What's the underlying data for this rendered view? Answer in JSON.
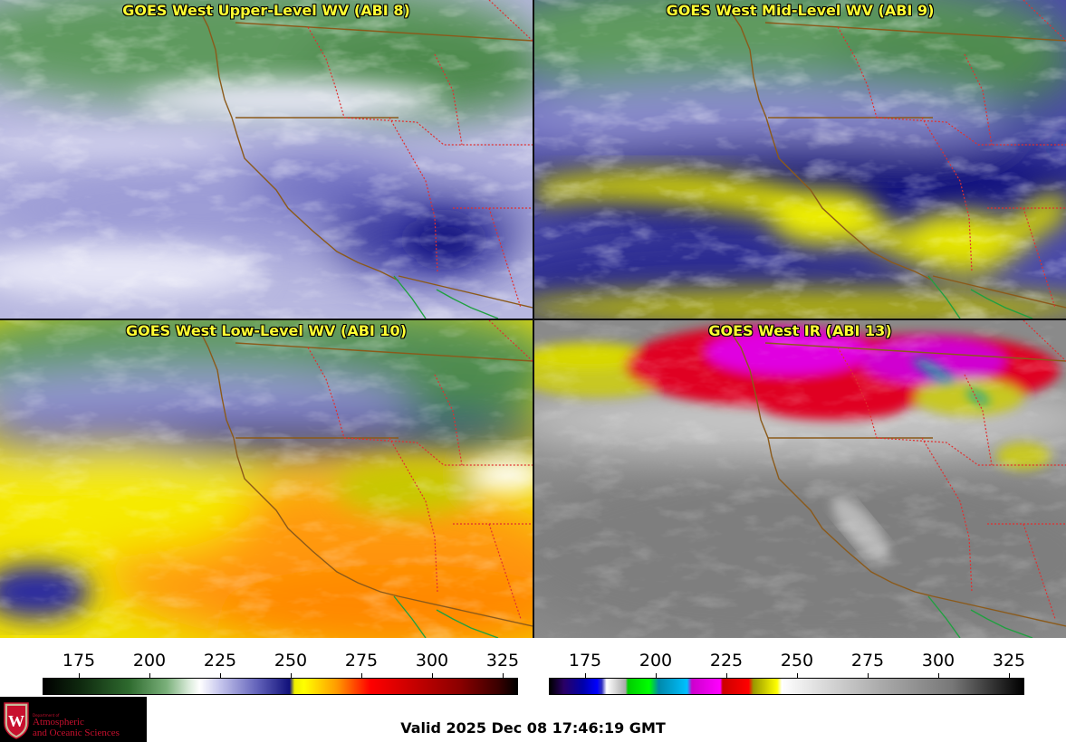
{
  "panels": [
    {
      "id": "upper",
      "title": "GOES West Upper-Level WV (ABI 8)"
    },
    {
      "id": "mid",
      "title": "GOES West Mid-Level WV (ABI 9)"
    },
    {
      "id": "low",
      "title": "GOES West Low-Level WV (ABI 10)"
    },
    {
      "id": "ir",
      "title": "GOES West IR (ABI 13)"
    }
  ],
  "colorbars": {
    "wv": {
      "ticks": [
        "175",
        "200",
        "225",
        "250",
        "275",
        "300",
        "325"
      ]
    },
    "ir": {
      "ticks": [
        "175",
        "200",
        "225",
        "250",
        "275",
        "300",
        "325"
      ]
    }
  },
  "logo": {
    "dept": "Department of",
    "line1": "Atmospheric",
    "line2": "and Oceanic Sciences"
  },
  "valid_time": "Valid 2025 Dec 08 17:46:19 GMT"
}
